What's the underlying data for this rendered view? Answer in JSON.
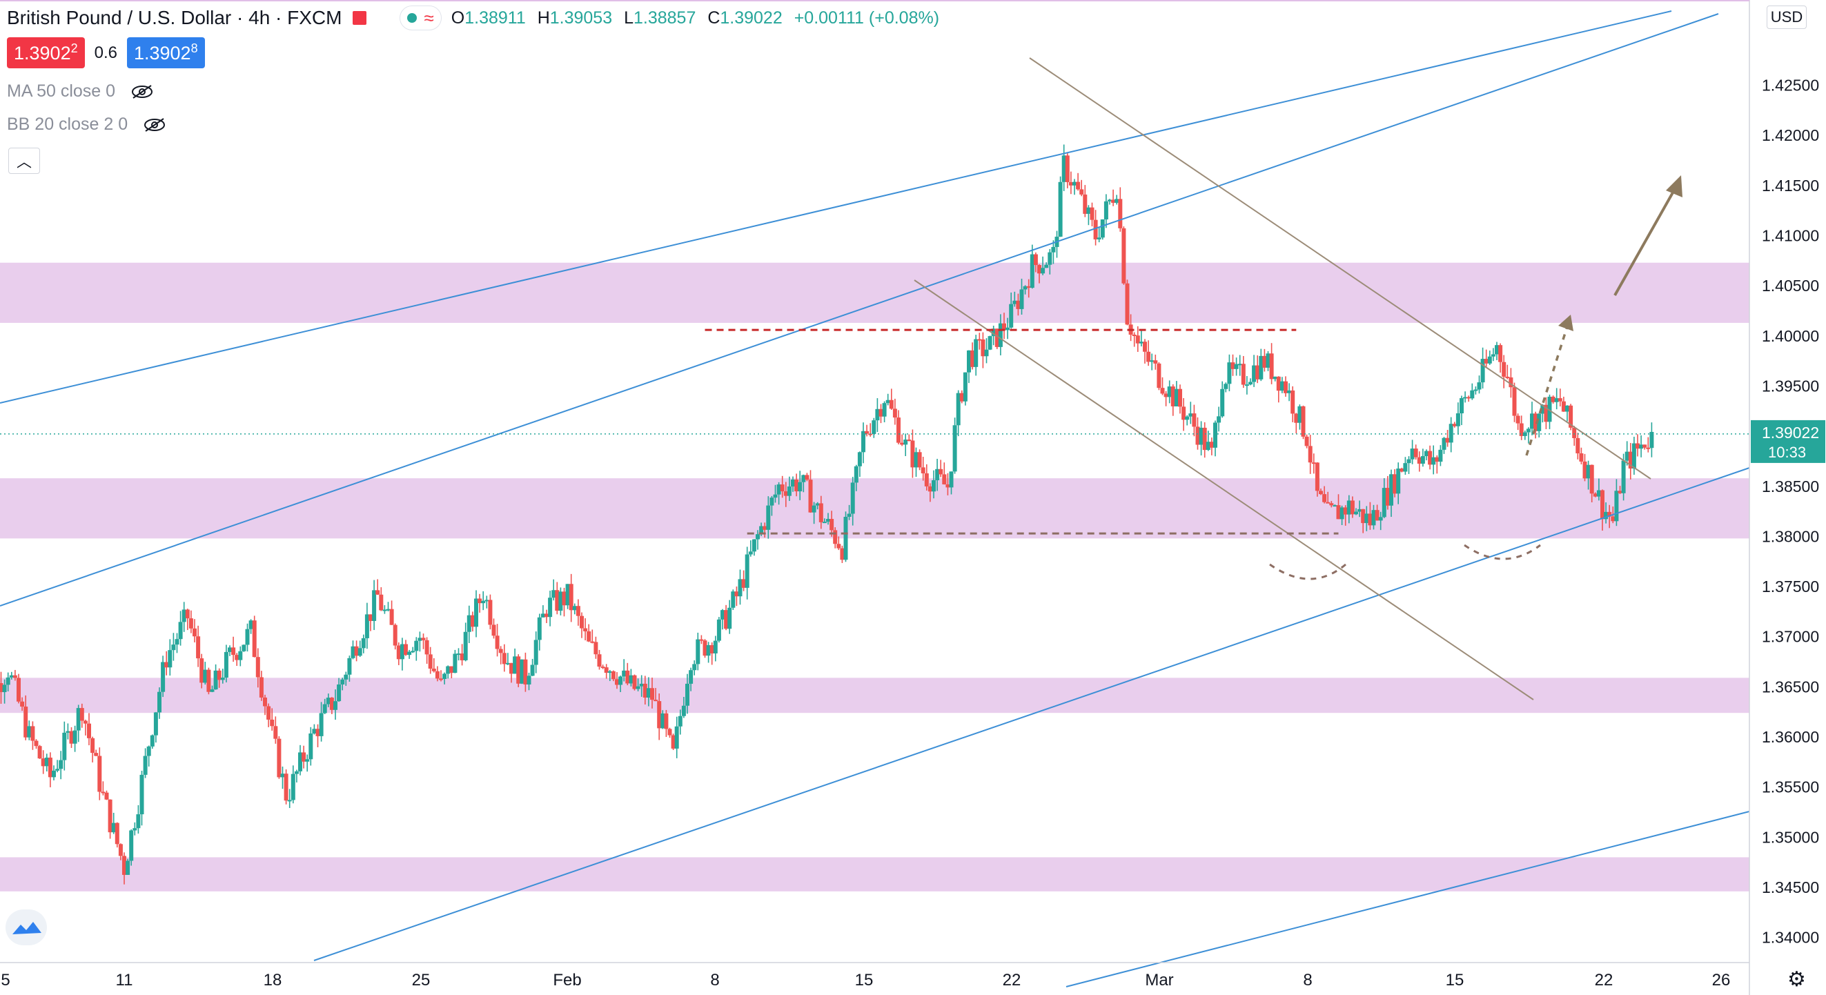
{
  "header": {
    "symbol_title": "British Pound / U.S. Dollar · 4h · FXCM",
    "open_key": "O",
    "open": "1.38911",
    "high_key": "H",
    "high": "1.39053",
    "low_key": "L",
    "low": "1.38857",
    "close_key": "C",
    "close": "1.39022",
    "change": "+0.00111 (+0.08%)",
    "sell_price": "1.3902",
    "sell_price_frac": "2",
    "spread": "0.6",
    "buy_price": "1.3902",
    "buy_price_frac": "8",
    "indicator_ma": "MA 50 close 0",
    "indicator_bb": "BB 20 close 2 0",
    "currency": "USD"
  },
  "colors": {
    "up": "#26a69a",
    "down": "#ef5350",
    "zone": "#e1bee7",
    "channel": "#3d8fd6",
    "trendline": "#9c8c78",
    "level_red": "#c62828",
    "level_brown": "#8d6e63",
    "arrow": "#8d7a5e"
  },
  "chart_data": {
    "type": "candlestick",
    "title": "British Pound / U.S. Dollar · 4h · FXCM",
    "xlabel": "",
    "ylabel": "",
    "x_ticks": [
      "5",
      "11",
      "18",
      "25",
      "Feb",
      "8",
      "15",
      "22",
      "Mar",
      "8",
      "15",
      "22",
      "26"
    ],
    "y_ticks": [
      "1.42500",
      "1.42000",
      "1.41500",
      "1.41000",
      "1.40500",
      "1.40000",
      "1.39500",
      "1.39000",
      "1.38500",
      "1.38000",
      "1.37500",
      "1.37000",
      "1.36500",
      "1.36000",
      "1.35500",
      "1.35000",
      "1.34500",
      "1.34000"
    ],
    "ylim": [
      1.3375,
      1.4335
    ],
    "last_price": "1.39022",
    "last_price_countdown": "10:33",
    "grid": false,
    "support_resistance_zones": [
      [
        1.4013,
        1.4073
      ],
      [
        1.3798,
        1.3858
      ],
      [
        1.3624,
        1.3659
      ],
      [
        1.3446,
        1.348
      ]
    ],
    "horizontal_levels": [
      {
        "price": 1.4006,
        "from_day": 38.5,
        "to_day": 66.5,
        "style": "dashed-red"
      },
      {
        "price": 1.3803,
        "from_day": 40.5,
        "to_day": 68.5,
        "style": "dashed-brown"
      }
    ],
    "close_path": [
      {
        "day": 4.0,
        "close": 1.362
      },
      {
        "day": 5.5,
        "close": 1.3668
      },
      {
        "day": 6.5,
        "close": 1.36
      },
      {
        "day": 7.5,
        "close": 1.356
      },
      {
        "day": 9.0,
        "close": 1.363
      },
      {
        "day": 10.0,
        "close": 1.354
      },
      {
        "day": 11.0,
        "close": 1.347
      },
      {
        "day": 11.7,
        "close": 1.354
      },
      {
        "day": 12.3,
        "close": 1.361
      },
      {
        "day": 13.0,
        "close": 1.368
      },
      {
        "day": 14.0,
        "close": 1.372
      },
      {
        "day": 15.0,
        "close": 1.364
      },
      {
        "day": 16.0,
        "close": 1.368
      },
      {
        "day": 17.0,
        "close": 1.3705
      },
      {
        "day": 18.0,
        "close": 1.36
      },
      {
        "day": 18.7,
        "close": 1.354
      },
      {
        "day": 19.3,
        "close": 1.357
      },
      {
        "day": 20.0,
        "close": 1.3605
      },
      {
        "day": 21.0,
        "close": 1.364
      },
      {
        "day": 22.0,
        "close": 1.3695
      },
      {
        "day": 23.0,
        "close": 1.374
      },
      {
        "day": 24.0,
        "close": 1.369
      },
      {
        "day": 25.0,
        "close": 1.37
      },
      {
        "day": 26.0,
        "close": 1.365
      },
      {
        "day": 27.0,
        "close": 1.369
      },
      {
        "day": 28.0,
        "close": 1.3745
      },
      {
        "day": 29.0,
        "close": 1.368
      },
      {
        "day": 30.0,
        "close": 1.366
      },
      {
        "day": 31.0,
        "close": 1.373
      },
      {
        "day": 32.0,
        "close": 1.374
      },
      {
        "day": 33.0,
        "close": 1.369
      },
      {
        "day": 34.0,
        "close": 1.367
      },
      {
        "day": 35.0,
        "close": 1.365
      },
      {
        "day": 36.0,
        "close": 1.364
      },
      {
        "day": 37.0,
        "close": 1.358
      },
      {
        "day": 37.8,
        "close": 1.368
      },
      {
        "day": 39.0,
        "close": 1.37
      },
      {
        "day": 40.0,
        "close": 1.374
      },
      {
        "day": 41.0,
        "close": 1.38
      },
      {
        "day": 42.0,
        "close": 1.385
      },
      {
        "day": 43.0,
        "close": 1.3855
      },
      {
        "day": 44.0,
        "close": 1.382
      },
      {
        "day": 45.0,
        "close": 1.379
      },
      {
        "day": 45.6,
        "close": 1.385
      },
      {
        "day": 46.0,
        "close": 1.39
      },
      {
        "day": 47.0,
        "close": 1.394
      },
      {
        "day": 48.0,
        "close": 1.389
      },
      {
        "day": 49.0,
        "close": 1.386
      },
      {
        "day": 50.0,
        "close": 1.385
      },
      {
        "day": 50.5,
        "close": 1.393
      },
      {
        "day": 51.0,
        "close": 1.398
      },
      {
        "day": 52.0,
        "close": 1.399
      },
      {
        "day": 53.0,
        "close": 1.402
      },
      {
        "day": 54.0,
        "close": 1.407
      },
      {
        "day": 55.0,
        "close": 1.408
      },
      {
        "day": 55.5,
        "close": 1.417
      },
      {
        "day": 56.0,
        "close": 1.415
      },
      {
        "day": 57.0,
        "close": 1.41
      },
      {
        "day": 58.0,
        "close": 1.415
      },
      {
        "day": 58.5,
        "close": 1.402
      },
      {
        "day": 59.0,
        "close": 1.399
      },
      {
        "day": 60.0,
        "close": 1.396
      },
      {
        "day": 61.0,
        "close": 1.393
      },
      {
        "day": 62.0,
        "close": 1.39
      },
      {
        "day": 62.5,
        "close": 1.388
      },
      {
        "day": 63.0,
        "close": 1.396
      },
      {
        "day": 64.0,
        "close": 1.396
      },
      {
        "day": 65.0,
        "close": 1.3975
      },
      {
        "day": 66.0,
        "close": 1.395
      },
      {
        "day": 67.0,
        "close": 1.39
      },
      {
        "day": 67.5,
        "close": 1.384
      },
      {
        "day": 68.0,
        "close": 1.382
      },
      {
        "day": 69.0,
        "close": 1.383
      },
      {
        "day": 70.0,
        "close": 1.3815
      },
      {
        "day": 71.0,
        "close": 1.385
      },
      {
        "day": 72.0,
        "close": 1.389
      },
      {
        "day": 73.0,
        "close": 1.387
      },
      {
        "day": 74.0,
        "close": 1.392
      },
      {
        "day": 75.0,
        "close": 1.395
      },
      {
        "day": 76.0,
        "close": 1.399
      },
      {
        "day": 76.5,
        "close": 1.396
      },
      {
        "day": 77.0,
        "close": 1.391
      },
      {
        "day": 78.0,
        "close": 1.392
      },
      {
        "day": 79.0,
        "close": 1.3935
      },
      {
        "day": 80.0,
        "close": 1.388
      },
      {
        "day": 81.0,
        "close": 1.383
      },
      {
        "day": 81.5,
        "close": 1.3815
      },
      {
        "day": 82.0,
        "close": 1.387
      },
      {
        "day": 83.0,
        "close": 1.3895
      },
      {
        "day": 83.5,
        "close": 1.3902
      }
    ]
  }
}
